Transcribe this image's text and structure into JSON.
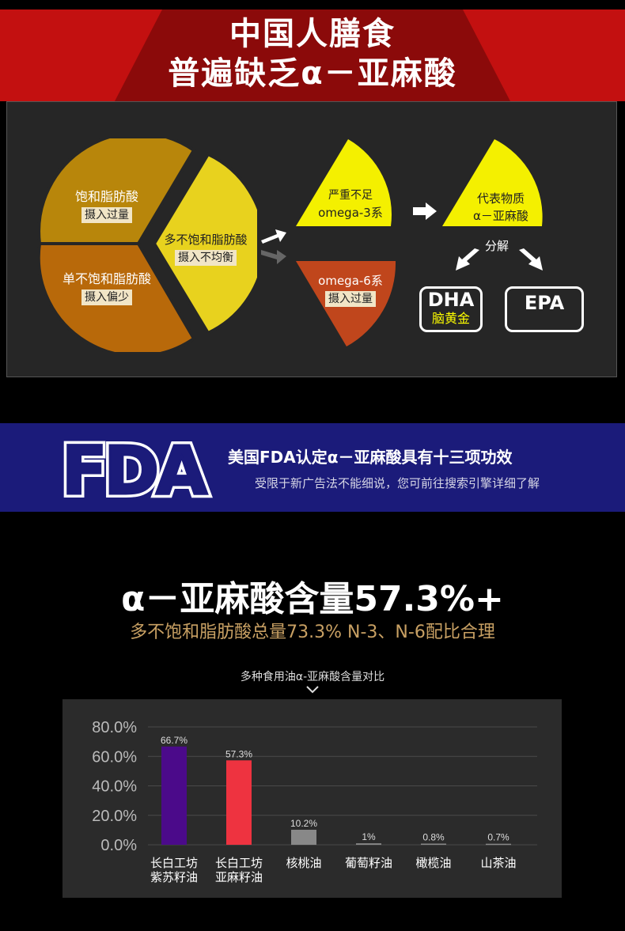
{
  "section1": {
    "title_line1": "中国人膳食",
    "title_line2": "普遍缺乏α－亚麻酸",
    "pie": {
      "saturated": {
        "label": "饱和脂肪酸",
        "tag": "摄入过量"
      },
      "mono": {
        "label": "单不饱和脂肪酸",
        "tag": "摄入偏少"
      },
      "poly": {
        "label": "多不饱和脂肪酸",
        "tag": "摄入不均衡"
      }
    },
    "omega3": {
      "line1": "严重不足",
      "line2": "omega-3系"
    },
    "omega6": {
      "line1": "omega-6系",
      "tag": "摄入过量"
    },
    "representative": {
      "line1": "代表物质",
      "line2": "α－亚麻酸"
    },
    "decompose": "分解",
    "dha": {
      "main": "DHA",
      "sub": "脑黄金"
    },
    "epa": {
      "main": "EPA"
    },
    "colors": {
      "red": "#c31010",
      "gold": "#b8860b",
      "orange_brown": "#b8690a",
      "yellow": "#f4f000",
      "lemon": "#e8d21e",
      "orange_red": "#c0461c"
    }
  },
  "section2": {
    "logo_text": "FDA",
    "title": "美国FDA认定α－亚麻酸具有十三项功效",
    "subtitle": "受限于新广告法不能细说，您可前往搜索引擎详细了解",
    "band_color": "#1b1b7a"
  },
  "section3": {
    "headline": "α－亚麻酸含量57.3%+",
    "subline": "多不饱和脂肪酸总量73.3% N-3、N-6配比合理",
    "caption": "多种食用油α-亚麻酸含量对比"
  },
  "chart_data": {
    "type": "bar",
    "title": "多种食用油α-亚麻酸含量对比",
    "categories": [
      "长白工坊\n紫苏籽油",
      "长白工坊\n亚麻籽油",
      "核桃油",
      "葡萄籽油",
      "橄榄油",
      "山茶油"
    ],
    "category_lines": [
      [
        "长白工坊",
        "紫苏籽油"
      ],
      [
        "长白工坊",
        "亚麻籽油"
      ],
      [
        "核桃油"
      ],
      [
        "葡萄籽油"
      ],
      [
        "橄榄油"
      ],
      [
        "山茶油"
      ]
    ],
    "values": [
      66.7,
      57.3,
      10.2,
      1,
      0.8,
      0.7
    ],
    "value_labels": [
      "66.7%",
      "57.3%",
      "10.2%",
      "1%",
      "0.8%",
      "0.7%"
    ],
    "bar_colors": [
      "#4b0a8a",
      "#ee3340",
      "#888888",
      "#888888",
      "#888888",
      "#888888"
    ],
    "yticks": [
      "0.0%",
      "20.0%",
      "40.0%",
      "60.0%",
      "80.0%"
    ],
    "ylim": [
      0,
      80
    ],
    "grid": true
  }
}
